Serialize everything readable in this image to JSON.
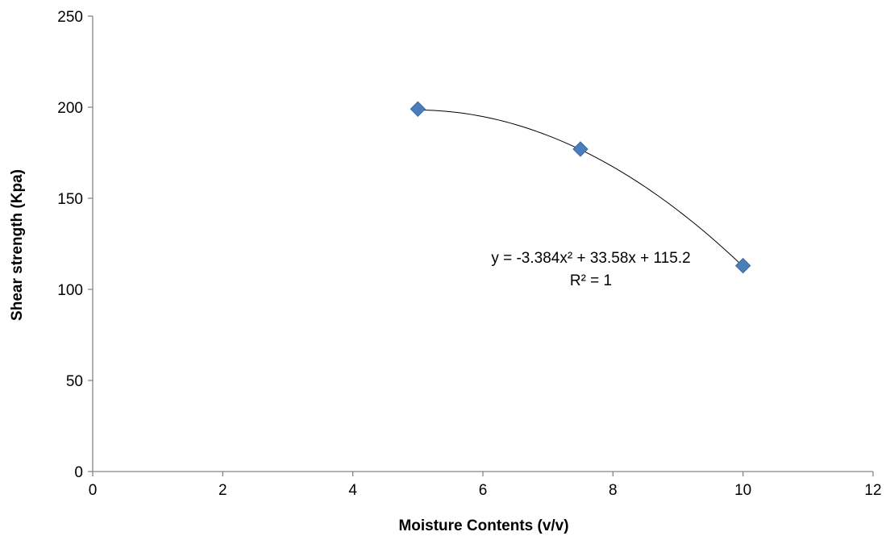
{
  "chart_data": {
    "type": "scatter",
    "title": "",
    "xlabel": "Moisture Contents (v/v)",
    "ylabel": "Shear strength (Kpa)",
    "xlim": [
      0,
      12
    ],
    "ylim": [
      0,
      250
    ],
    "x_ticks": [
      "0",
      "2",
      "4",
      "6",
      "8",
      "10",
      "12"
    ],
    "y_ticks": [
      "0",
      "50",
      "100",
      "150",
      "200",
      "250"
    ],
    "grid": false,
    "legend": "none",
    "series": [
      {
        "x": [
          5,
          7.5,
          10
        ],
        "y": [
          199,
          177,
          113
        ],
        "marker": "diamond",
        "color": "#4a7ebb"
      }
    ],
    "trendline": {
      "type": "polynomial",
      "order": 2,
      "coefficients": {
        "a": -3.384,
        "b": 33.58,
        "c": 115.2
      },
      "x_range": [
        5,
        10
      ],
      "color": "#000000",
      "equation_label": "y = -3.384x² + 33.58x + 115.2",
      "r2_label": "R² = 1"
    }
  }
}
